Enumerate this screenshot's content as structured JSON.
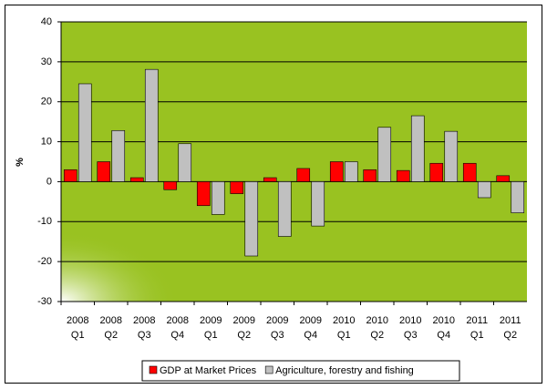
{
  "chart_data": {
    "type": "bar",
    "y_label": "%",
    "categories": [
      [
        "2008",
        "Q1"
      ],
      [
        "2008",
        "Q2"
      ],
      [
        "2008",
        "Q3"
      ],
      [
        "2008",
        "Q4"
      ],
      [
        "2009",
        "Q1"
      ],
      [
        "2009",
        "Q2"
      ],
      [
        "2009",
        "Q3"
      ],
      [
        "2009",
        "Q4"
      ],
      [
        "2010",
        "Q1"
      ],
      [
        "2010",
        "Q2"
      ],
      [
        "2010",
        "Q3"
      ],
      [
        "2010",
        "Q4"
      ],
      [
        "2011",
        "Q1"
      ],
      [
        "2011",
        "Q2"
      ]
    ],
    "series": [
      {
        "name": "GDP at Market Prices",
        "color": "#ff0000",
        "values": [
          3,
          5,
          1,
          -2,
          -6,
          -3,
          1,
          3.3,
          5,
          3,
          2.8,
          4.6,
          4.6,
          1.5
        ]
      },
      {
        "name": "Agriculture, forestry and fishing",
        "color": "#c0c0c0",
        "values": [
          24.5,
          12.8,
          28.1,
          9.5,
          -8.2,
          -18.6,
          -13.7,
          -11.1,
          5,
          13.6,
          16.5,
          12.6,
          -4,
          -7.8
        ]
      }
    ],
    "ylim": [
      -30,
      40
    ],
    "yticks": [
      -30,
      -20,
      -10,
      0,
      10,
      20,
      30,
      40
    ],
    "grid": true,
    "legend": "bottom"
  }
}
